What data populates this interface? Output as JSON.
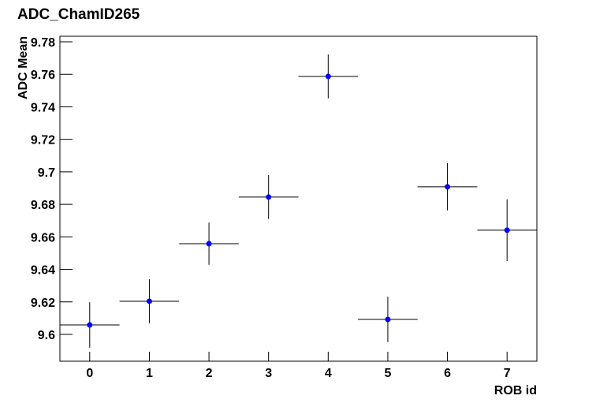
{
  "chart_data": {
    "type": "errorbar",
    "title": "ADC_ChamID265",
    "x_label": "ROB id",
    "y_label": "ADC Mean",
    "x": [
      0,
      1,
      2,
      3,
      4,
      5,
      6,
      7
    ],
    "values": [
      9.6058,
      9.6204,
      9.6558,
      9.6845,
      9.7587,
      9.6092,
      9.6908,
      9.6641
    ],
    "errors": [
      0.014,
      0.0135,
      0.013,
      0.0135,
      0.0135,
      0.014,
      0.0145,
      0.019
    ],
    "xerrors": [
      0.5,
      0.5,
      0.5,
      0.5,
      0.5,
      0.5,
      0.5,
      0.5
    ],
    "color": "#0000ff",
    "xlim": [
      -0.5,
      7.5
    ],
    "xticks": [
      0,
      1,
      2,
      3,
      4,
      5,
      6,
      7
    ],
    "ylim": [
      9.5835,
      9.7834
    ],
    "yticks": [
      9.6,
      9.62,
      9.64,
      9.66,
      9.68,
      9.7,
      9.72,
      9.74,
      9.76,
      9.78
    ],
    "grid": false
  }
}
